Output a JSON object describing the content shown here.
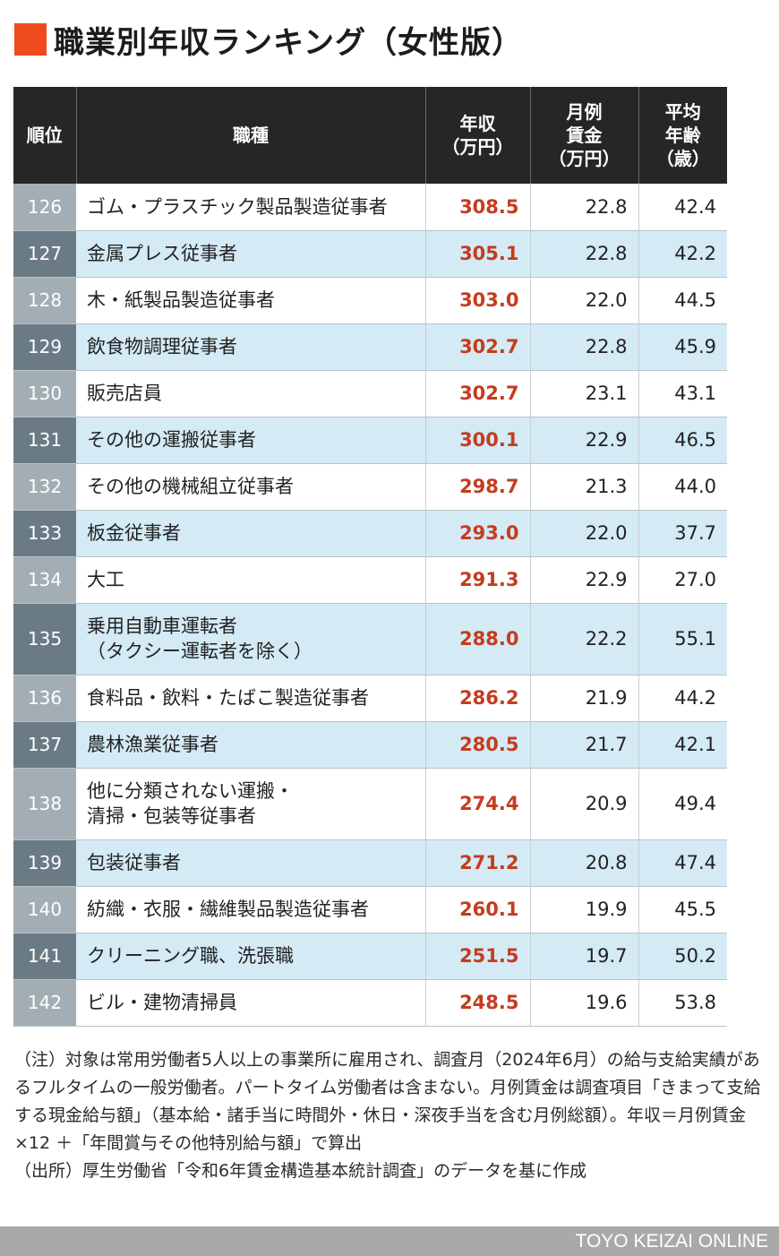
{
  "title": "職業別年収ランキング（女性版）",
  "colors": {
    "accent": "#ef4a1c",
    "income_text": "#c43c1e",
    "header_bg": "#262626",
    "row_alt": "#d4eaf5"
  },
  "headers": {
    "rank": "順位",
    "occupation": "職種",
    "income": "年収\n（万円）",
    "monthly_wage": "月例\n賃金\n（万円）",
    "avg_age": "平均\n年齢\n（歳）"
  },
  "rows": [
    {
      "rank": "126",
      "occupation": "ゴム・プラスチック製品製造従事者",
      "income": "308.5",
      "wage": "22.8",
      "age": "42.4"
    },
    {
      "rank": "127",
      "occupation": "金属プレス従事者",
      "income": "305.1",
      "wage": "22.8",
      "age": "42.2"
    },
    {
      "rank": "128",
      "occupation": "木・紙製品製造従事者",
      "income": "303.0",
      "wage": "22.0",
      "age": "44.5"
    },
    {
      "rank": "129",
      "occupation": "飲食物調理従事者",
      "income": "302.7",
      "wage": "22.8",
      "age": "45.9"
    },
    {
      "rank": "130",
      "occupation": "販売店員",
      "income": "302.7",
      "wage": "23.1",
      "age": "43.1"
    },
    {
      "rank": "131",
      "occupation": "その他の運搬従事者",
      "income": "300.1",
      "wage": "22.9",
      "age": "46.5"
    },
    {
      "rank": "132",
      "occupation": "その他の機械組立従事者",
      "income": "298.7",
      "wage": "21.3",
      "age": "44.0"
    },
    {
      "rank": "133",
      "occupation": "板金従事者",
      "income": "293.0",
      "wage": "22.0",
      "age": "37.7"
    },
    {
      "rank": "134",
      "occupation": "大工",
      "income": "291.3",
      "wage": "22.9",
      "age": "27.0"
    },
    {
      "rank": "135",
      "occupation": "乗用自動車運転者\n（タクシー運転者を除く）",
      "income": "288.0",
      "wage": "22.2",
      "age": "55.1"
    },
    {
      "rank": "136",
      "occupation": "食料品・飲料・たばこ製造従事者",
      "income": "286.2",
      "wage": "21.9",
      "age": "44.2"
    },
    {
      "rank": "137",
      "occupation": "農林漁業従事者",
      "income": "280.5",
      "wage": "21.7",
      "age": "42.1"
    },
    {
      "rank": "138",
      "occupation": "他に分類されない運搬・\n清掃・包装等従事者",
      "income": "274.4",
      "wage": "20.9",
      "age": "49.4"
    },
    {
      "rank": "139",
      "occupation": "包装従事者",
      "income": "271.2",
      "wage": "20.8",
      "age": "47.4"
    },
    {
      "rank": "140",
      "occupation": "紡織・衣服・繊維製品製造従事者",
      "income": "260.1",
      "wage": "19.9",
      "age": "45.5"
    },
    {
      "rank": "141",
      "occupation": "クリーニング職、洗張職",
      "income": "251.5",
      "wage": "19.7",
      "age": "50.2"
    },
    {
      "rank": "142",
      "occupation": "ビル・建物清掃員",
      "income": "248.5",
      "wage": "19.6",
      "age": "53.8"
    }
  ],
  "notes": {
    "note": "（注）対象は常用労働者5人以上の事業所に雇用され、調査月（2024年6月）の給与支給実績があるフルタイムの一般労働者。パートタイム労働者は含まない。月例賃金は調査項目「きまって支給する現金給与額」（基本給・諸手当に時間外・休日・深夜手当を含む月例総額）。年収＝月例賃金 ×12 ＋「年間賞与その他特別給与額」で算出",
    "source": "（出所）厚生労働省「令和6年賃金構造基本統計調査」のデータを基に作成"
  },
  "footer": "TOYO KEIZAI ONLINE"
}
